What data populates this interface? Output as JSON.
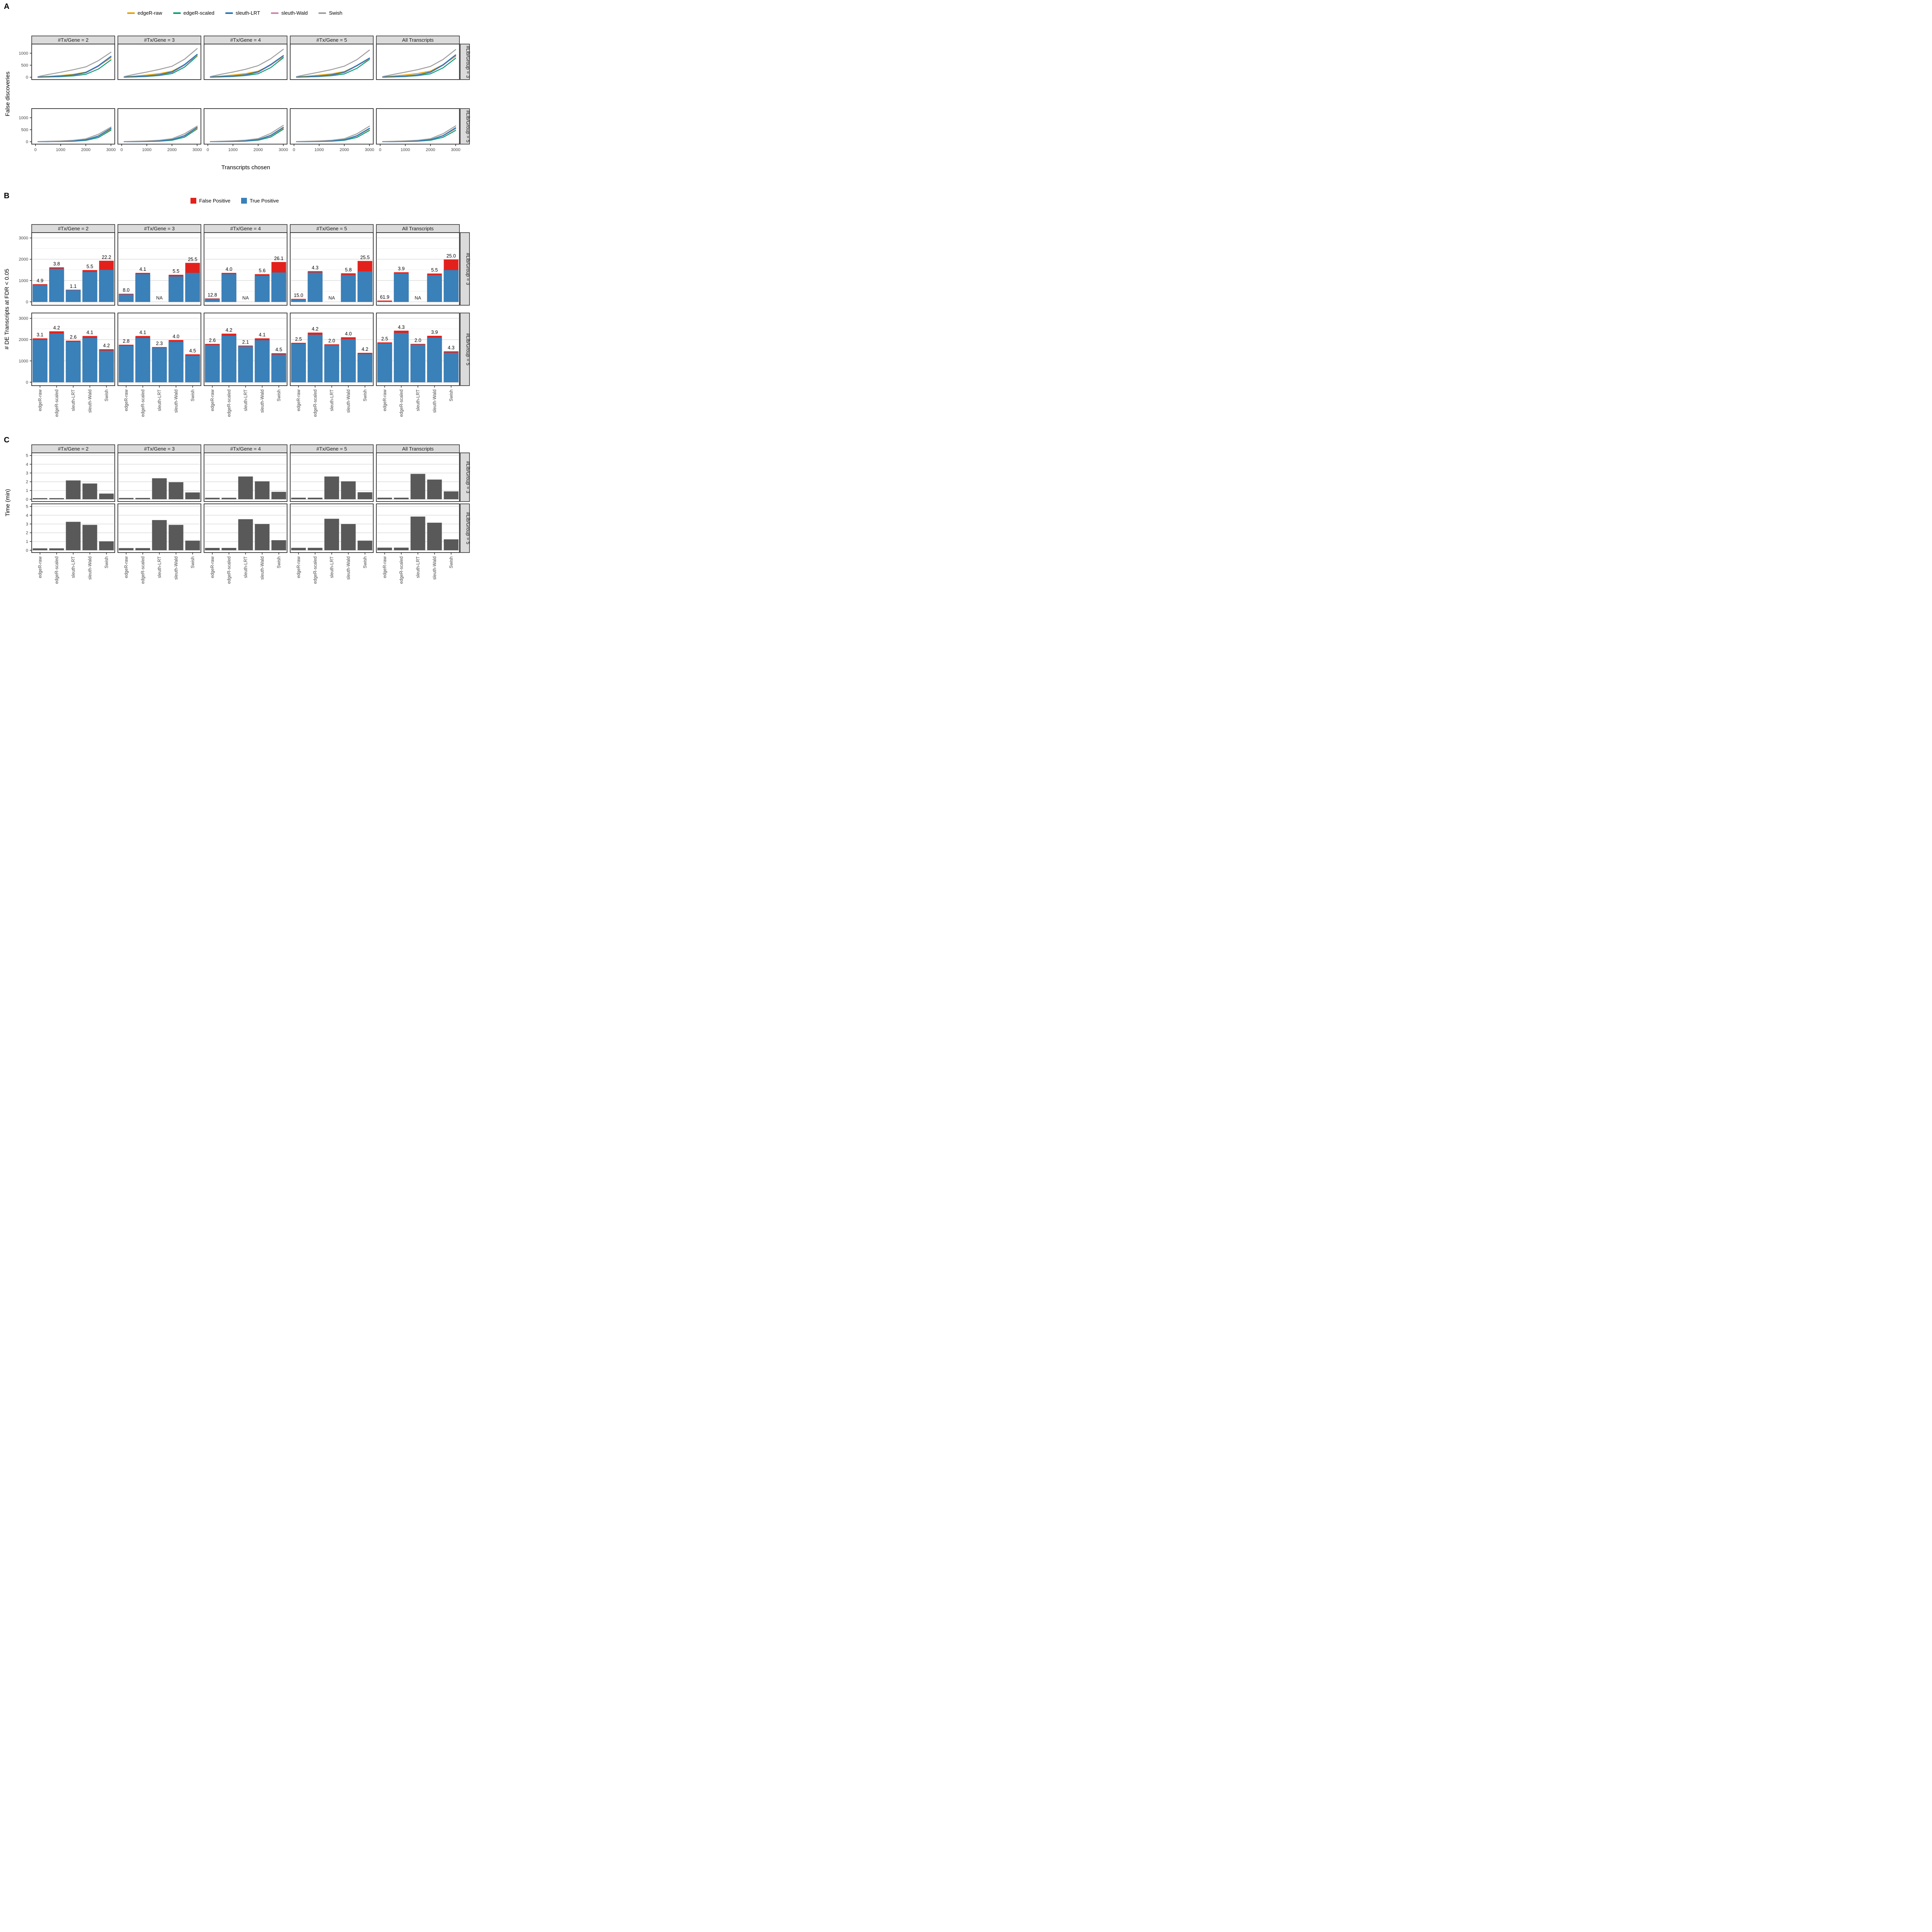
{
  "figure": {
    "panelA_label": "A",
    "panelB_label": "B",
    "panelC_label": "C"
  },
  "chart_data": [
    {
      "type": "line",
      "panel_label": "A",
      "title": "",
      "xlabel": "Transcripts chosen",
      "ylabel": "False discoveries",
      "col_facets": [
        "#Tx/Gene = 2",
        "#Tx/Gene = 3",
        "#Tx/Gene = 4",
        "#Tx/Gene = 5",
        "All Transcripts"
      ],
      "row_facets": [
        "#Lib/Group = 3",
        "#Lib/Group = 5"
      ],
      "legend_position": "top",
      "grid": "off",
      "methods": [
        "edgeR-raw",
        "edgeR-scaled",
        "sleuth-LRT",
        "sleuth-Wald",
        "Swish"
      ],
      "legend": [
        {
          "name": "edgeR-raw",
          "color": "#E69F00"
        },
        {
          "name": "edgeR-scaled",
          "color": "#009E73"
        },
        {
          "name": "sleuth-LRT",
          "color": "#1F74B4"
        },
        {
          "name": "sleuth-Wald",
          "color": "#CF7FAC"
        },
        {
          "name": "Swish",
          "color": "#9C9C9C"
        }
      ],
      "x_ticks": [
        0,
        1000,
        2000,
        3000
      ],
      "y_ticks": [
        0,
        500,
        1000
      ],
      "xlim": [
        -150,
        3150
      ],
      "ylim": [
        -100,
        1380
      ],
      "x": [
        100,
        500,
        1000,
        1500,
        2000,
        2500,
        3000
      ],
      "series": {
        "lib3": {
          "tx2": [
            [
              10,
              35,
              70,
              120,
              210,
              460,
              810
            ],
            [
              2,
              8,
              22,
              55,
              120,
              340,
              720
            ],
            [
              5,
              18,
              45,
              95,
              200,
              480,
              870
            ],
            [
              3,
              12,
              35,
              80,
              180,
              450,
              850
            ],
            [
              25,
              110,
              205,
              310,
              430,
              690,
              1040
            ]
          ],
          "tx3": [
            [
              12,
              45,
              90,
              150,
              250,
              520,
              900
            ],
            [
              2,
              10,
              28,
              70,
              150,
              420,
              880
            ],
            [
              5,
              20,
              50,
              105,
              220,
              530,
              950
            ],
            [
              3,
              14,
              40,
              90,
              200,
              500,
              930
            ],
            [
              25,
              115,
              215,
              325,
              455,
              750,
              1190
            ]
          ],
          "tx4": [
            [
              12,
              45,
              90,
              150,
              250,
              510,
              850
            ],
            [
              2,
              10,
              28,
              68,
              145,
              400,
              810
            ],
            [
              5,
              20,
              50,
              105,
              225,
              530,
              900
            ],
            [
              3,
              14,
              40,
              90,
              205,
              500,
              880
            ],
            [
              25,
              115,
              215,
              330,
              480,
              770,
              1160
            ]
          ],
          "tx5": [
            [
              11,
              42,
              85,
              140,
              235,
              480,
              760
            ],
            [
              2,
              9,
              25,
              62,
              135,
              370,
              740
            ],
            [
              5,
              18,
              48,
              100,
              210,
              490,
              800
            ],
            [
              3,
              13,
              38,
              85,
              195,
              470,
              780
            ],
            [
              25,
              110,
              210,
              320,
              460,
              730,
              1130
            ]
          ],
          "all": [
            [
              14,
              50,
              95,
              155,
              255,
              520,
              870
            ],
            [
              2,
              9,
              26,
              65,
              140,
              390,
              790
            ],
            [
              5,
              18,
              48,
              100,
              215,
              520,
              930
            ],
            [
              3,
              13,
              38,
              88,
              200,
              495,
              900
            ],
            [
              25,
              110,
              210,
              315,
              450,
              740,
              1150
            ]
          ]
        },
        "lib5": {
          "tx2": [
            [
              3,
              8,
              16,
              33,
              80,
              230,
              520
            ],
            [
              1,
              4,
              9,
              21,
              55,
              175,
              480
            ],
            [
              2,
              6,
              14,
              30,
              80,
              240,
              560
            ],
            [
              2,
              5,
              12,
              27,
              72,
              225,
              550
            ],
            [
              8,
              18,
              32,
              60,
              120,
              310,
              610
            ]
          ],
          "tx3": [
            [
              3,
              9,
              18,
              36,
              85,
              245,
              560
            ],
            [
              1,
              4,
              10,
              23,
              60,
              190,
              530
            ],
            [
              2,
              6,
              15,
              32,
              85,
              255,
              600
            ],
            [
              2,
              5,
              13,
              29,
              78,
              240,
              585
            ],
            [
              8,
              18,
              34,
              62,
              125,
              330,
              650
            ]
          ],
          "tx4": [
            [
              3,
              9,
              19,
              38,
              88,
              250,
              565
            ],
            [
              1,
              4,
              10,
              24,
              62,
              195,
              520
            ],
            [
              2,
              7,
              16,
              34,
              88,
              265,
              600
            ],
            [
              2,
              6,
              14,
              30,
              80,
              250,
              585
            ],
            [
              8,
              19,
              36,
              65,
              130,
              345,
              680
            ]
          ],
          "tx5": [
            [
              3,
              9,
              18,
              36,
              84,
              240,
              530
            ],
            [
              1,
              4,
              10,
              22,
              58,
              180,
              470
            ],
            [
              2,
              6,
              15,
              32,
              84,
              250,
              560
            ],
            [
              2,
              5,
              13,
              28,
              76,
              238,
              548
            ],
            [
              8,
              18,
              34,
              62,
              125,
              330,
              650
            ]
          ],
          "all": [
            [
              3,
              9,
              18,
              37,
              86,
              245,
              540
            ],
            [
              1,
              4,
              10,
              23,
              59,
              185,
              470
            ],
            [
              2,
              6,
              15,
              32,
              85,
              255,
              580
            ],
            [
              2,
              5,
              13,
              29,
              78,
              242,
              560
            ],
            [
              8,
              18,
              35,
              63,
              127,
              335,
              660
            ]
          ]
        }
      }
    },
    {
      "type": "bar",
      "subtype": "stacked",
      "panel_label": "B",
      "title": "",
      "xlabel": "",
      "ylabel": "# DE Transcripts at FDR < 0.05",
      "col_facets": [
        "#Tx/Gene = 2",
        "#Tx/Gene = 3",
        "#Tx/Gene = 4",
        "#Tx/Gene = 5",
        "All Transcripts"
      ],
      "row_facets": [
        "#Lib/Group = 3",
        "#Lib/Group = 5"
      ],
      "legend_position": "top",
      "grid": "horizontal",
      "categories": [
        "edgeR-raw",
        "edgeR-scaled",
        "sleuth-LRT",
        "sleuth-Wald",
        "Swish"
      ],
      "legend": [
        {
          "name": "False Positive",
          "color": "#E3211C"
        },
        {
          "name": "True Positive",
          "color": "#3A80B9"
        }
      ],
      "y_ticks": [
        0,
        1000,
        2000,
        3000
      ],
      "ylim": [
        -160,
        3250
      ],
      "na_text": "NA",
      "totals": {
        "lib3": {
          "tx2": [
            830,
            1620,
            570,
            1490,
            1930
          ],
          "tx3": [
            380,
            1360,
            null,
            1270,
            1830
          ],
          "tx4": [
            160,
            1360,
            null,
            1300,
            1870
          ],
          "tx5": [
            140,
            1440,
            null,
            1340,
            1920
          ],
          "all": [
            60,
            1390,
            null,
            1330,
            1990
          ]
        },
        "lib5": {
          "tx2": [
            2060,
            2390,
            1950,
            2170,
            1550
          ],
          "tx3": [
            1760,
            2170,
            1650,
            1980,
            1310
          ],
          "tx4": [
            1800,
            2280,
            1720,
            2060,
            1360
          ],
          "tx5": [
            1850,
            2330,
            1780,
            2110,
            1380
          ],
          "all": [
            1870,
            2420,
            1800,
            2180,
            1450
          ]
        }
      },
      "fdr_percent_labels": {
        "lib3": {
          "tx2": [
            "4.9",
            "3.8",
            "1.1",
            "5.5",
            "22.2"
          ],
          "tx3": [
            "8.0",
            "4.1",
            "NA",
            "5.5",
            "25.5"
          ],
          "tx4": [
            "12.8",
            "4.0",
            "NA",
            "5.6",
            "26.1"
          ],
          "tx5": [
            "15.0",
            "4.3",
            "NA",
            "5.8",
            "25.5"
          ],
          "all": [
            "61.9",
            "3.9",
            "NA",
            "5.5",
            "25.0"
          ]
        },
        "lib5": {
          "tx2": [
            "3.1",
            "4.2",
            "2.6",
            "4.1",
            "4.2"
          ],
          "tx3": [
            "2.8",
            "4.1",
            "2.3",
            "4.0",
            "4.5"
          ],
          "tx4": [
            "2.6",
            "4.2",
            "2.1",
            "4.1",
            "4.5"
          ],
          "tx5": [
            "2.5",
            "4.2",
            "2.0",
            "4.0",
            "4.2"
          ],
          "all": [
            "2.5",
            "4.3",
            "2.0",
            "3.9",
            "4.3"
          ]
        }
      }
    },
    {
      "type": "bar",
      "subtype": "simple",
      "panel_label": "C",
      "title": "",
      "xlabel": "",
      "ylabel": "Time (min)",
      "col_facets": [
        "#Tx/Gene = 2",
        "#Tx/Gene = 3",
        "#Tx/Gene = 4",
        "#Tx/Gene = 5",
        "All Transcripts"
      ],
      "row_facets": [
        "#Lib/Group = 3",
        "#Lib/Group = 5"
      ],
      "legend_position": "none",
      "grid": "horizontal",
      "bar_color": "#595959",
      "categories": [
        "edgeR-raw",
        "edgeR-scaled",
        "sleuth-LRT",
        "sleuth-Wald",
        "Swish"
      ],
      "y_ticks": [
        0,
        1,
        2,
        3,
        4,
        5
      ],
      "ylim": [
        -0.26,
        5.3
      ],
      "values": {
        "lib3": {
          "tx2": [
            0.13,
            0.13,
            2.15,
            1.8,
            0.65
          ],
          "tx3": [
            0.15,
            0.15,
            2.4,
            1.95,
            0.78
          ],
          "tx4": [
            0.17,
            0.17,
            2.6,
            2.05,
            0.85
          ],
          "tx5": [
            0.18,
            0.18,
            2.6,
            2.05,
            0.8
          ],
          "all": [
            0.18,
            0.18,
            2.9,
            2.25,
            0.9
          ]
        },
        "lib5": {
          "tx2": [
            0.22,
            0.22,
            3.25,
            2.9,
            1.02
          ],
          "tx3": [
            0.25,
            0.25,
            3.45,
            2.9,
            1.1
          ],
          "tx4": [
            0.27,
            0.27,
            3.55,
            3.0,
            1.15
          ],
          "tx5": [
            0.28,
            0.28,
            3.6,
            3.0,
            1.1
          ],
          "all": [
            0.3,
            0.3,
            3.85,
            3.15,
            1.25
          ]
        }
      }
    }
  ],
  "style": {
    "strip_bg": "#DBDBDB",
    "panel_border": "#333333",
    "grid_major": "#E4E4E4",
    "grid_minor": "#F1F1F1",
    "tick_text": "#444444",
    "bar_blue": "#3A80B9",
    "bar_red": "#E3211C",
    "bar_gray": "#595959"
  }
}
